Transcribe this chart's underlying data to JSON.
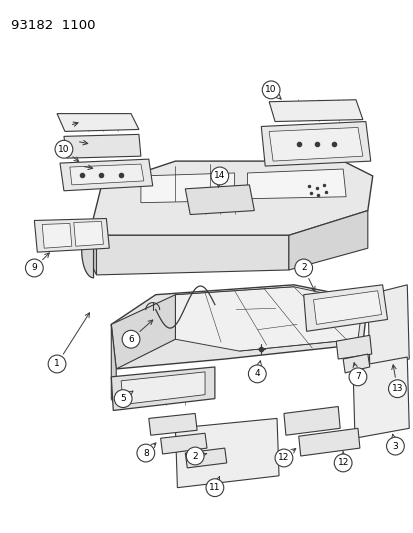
{
  "title": "93182  1100",
  "bg_color": "#ffffff",
  "line_color": "#3a3a3a",
  "fig_width": 4.14,
  "fig_height": 5.33,
  "dpi": 100
}
